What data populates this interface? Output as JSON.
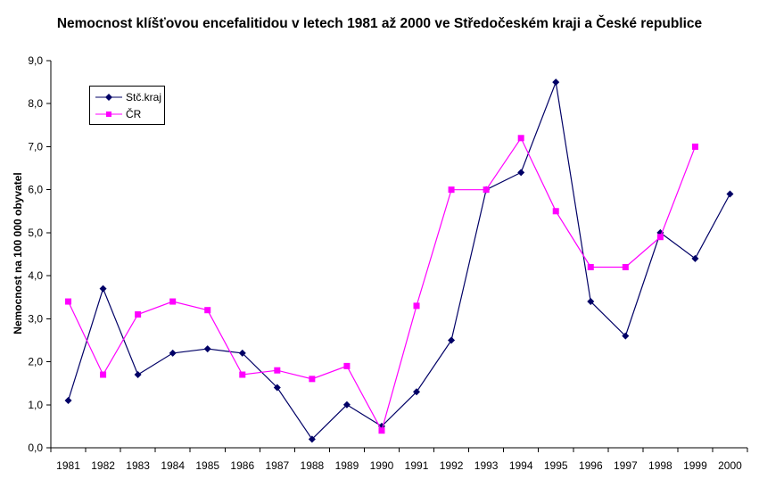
{
  "chart_data": {
    "type": "line",
    "title": "Nemocnost klíšťovou encefalitidou v letech 1981 až 2000 ve Středočeském kraji a České republice",
    "xlabel": "",
    "ylabel": "Nemocnost na 100 000 obyvatel",
    "categories": [
      "1981",
      "1982",
      "1983",
      "1984",
      "1985",
      "1986",
      "1987",
      "1988",
      "1989",
      "1990",
      "1991",
      "1992",
      "1993",
      "1994",
      "1995",
      "1996",
      "1997",
      "1998",
      "1999",
      "2000"
    ],
    "ylim": [
      0,
      9
    ],
    "yticks": [
      "0,0",
      "1,0",
      "2,0",
      "3,0",
      "4,0",
      "5,0",
      "6,0",
      "7,0",
      "8,0",
      "9,0"
    ],
    "grid": false,
    "legend_position": "top-left",
    "series": [
      {
        "name": "Stč.kraj",
        "color": "#000066",
        "marker": "diamond",
        "values": [
          1.1,
          3.7,
          1.7,
          2.2,
          2.3,
          2.2,
          1.4,
          0.2,
          1.0,
          0.5,
          1.3,
          2.5,
          6.0,
          6.4,
          8.5,
          3.4,
          2.6,
          5.0,
          4.4,
          5.9
        ]
      },
      {
        "name": "ČR",
        "color": "#FF00FF",
        "marker": "square",
        "values": [
          3.4,
          1.7,
          3.1,
          3.4,
          3.2,
          1.7,
          1.8,
          1.6,
          1.9,
          0.4,
          3.3,
          6.0,
          6.0,
          7.2,
          5.5,
          4.2,
          4.2,
          4.9,
          7.0,
          null
        ]
      }
    ]
  }
}
